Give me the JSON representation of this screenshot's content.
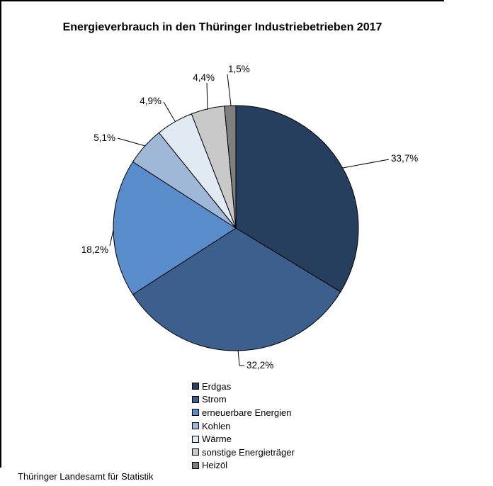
{
  "chart_data": {
    "type": "pie",
    "title": "Energieverbrauch in den Thüringer Industriebetrieben 2017",
    "source": "Thüringer Landesamt für Statistik",
    "unit": "%",
    "direction": "clockwise",
    "start_angle_deg": 0,
    "legend_position": "bottom",
    "outline_color": "#000000",
    "slices": [
      {
        "label": "Erdgas",
        "value": 33.7,
        "display": "33,7%",
        "color": "#263F5E"
      },
      {
        "label": "Strom",
        "value": 32.2,
        "display": "32,2%",
        "color": "#3C5F8E"
      },
      {
        "label": "erneuerbare Energien",
        "value": 18.2,
        "display": "18,2%",
        "color": "#588CCB"
      },
      {
        "label": "Kohlen",
        "value": 5.1,
        "display": "5,1%",
        "color": "#A0B8D8"
      },
      {
        "label": "Wärme",
        "value": 4.9,
        "display": "4,9%",
        "color": "#E1E9F3"
      },
      {
        "label": "sonstige Energieträger",
        "value": 4.4,
        "display": "4,4%",
        "color": "#C9C9C9"
      },
      {
        "label": "Heizöl",
        "value": 1.5,
        "display": "1,5%",
        "color": "#7F7F7F"
      }
    ]
  }
}
